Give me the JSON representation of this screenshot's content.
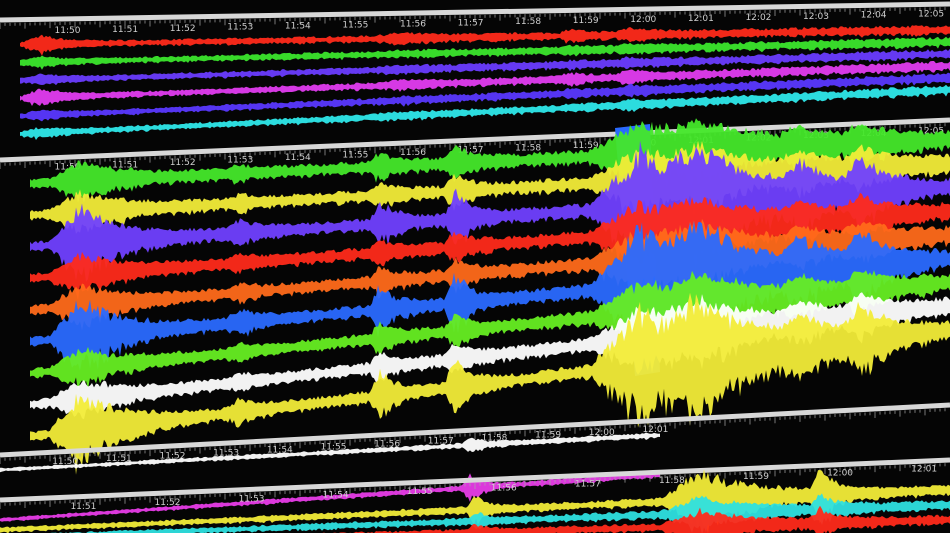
{
  "panels": [
    {
      "name": "panel-top",
      "time_labels": [
        "11:50",
        "11:51",
        "11:52",
        "11:53",
        "11:54",
        "11:55",
        "11:56",
        "11:57",
        "11:58",
        "11:59",
        "12:00",
        "12:01",
        "12:02",
        "12:03",
        "12:04",
        "12:05"
      ],
      "traces": [
        "#ff2a1a",
        "#3be62c",
        "#6a3cff",
        "#e23cf0",
        "#5a38ff",
        "#2ee8ea"
      ]
    },
    {
      "name": "panel-middle",
      "time_labels": [
        "11:50",
        "11:51",
        "11:52",
        "11:53",
        "11:54",
        "11:55",
        "11:56",
        "11:57",
        "11:58",
        "11:59",
        "12:00",
        "12:01",
        "12:02",
        "12:03",
        "12:04",
        "12:05"
      ],
      "traces": [
        "#44e82a",
        "#f2ec38",
        "#7040ff",
        "#ff2a1a",
        "#ff6a1a",
        "#2a6aff",
        "#66ee22",
        "#ffffff",
        "#f2ec38"
      ]
    },
    {
      "name": "panel-lower",
      "time_labels": [
        "11:50",
        "11:51",
        "11:52",
        "11:53",
        "11:54",
        "11:55",
        "11:56",
        "11:57",
        "11:58",
        "11:59",
        "12:00",
        "12:01"
      ],
      "traces": [
        "#ffffff",
        "#e83ce8"
      ]
    },
    {
      "name": "panel-bottom",
      "time_labels": [
        "11:51",
        "11:52",
        "11:53",
        "11:54",
        "11:55",
        "11:56",
        "11:57",
        "11:58",
        "11:59",
        "12:00",
        "12:01"
      ],
      "traces": [
        "#f2ec38",
        "#2ee0e0",
        "#ff2a1a"
      ]
    }
  ],
  "event_highlight_color": "#2a6aff"
}
